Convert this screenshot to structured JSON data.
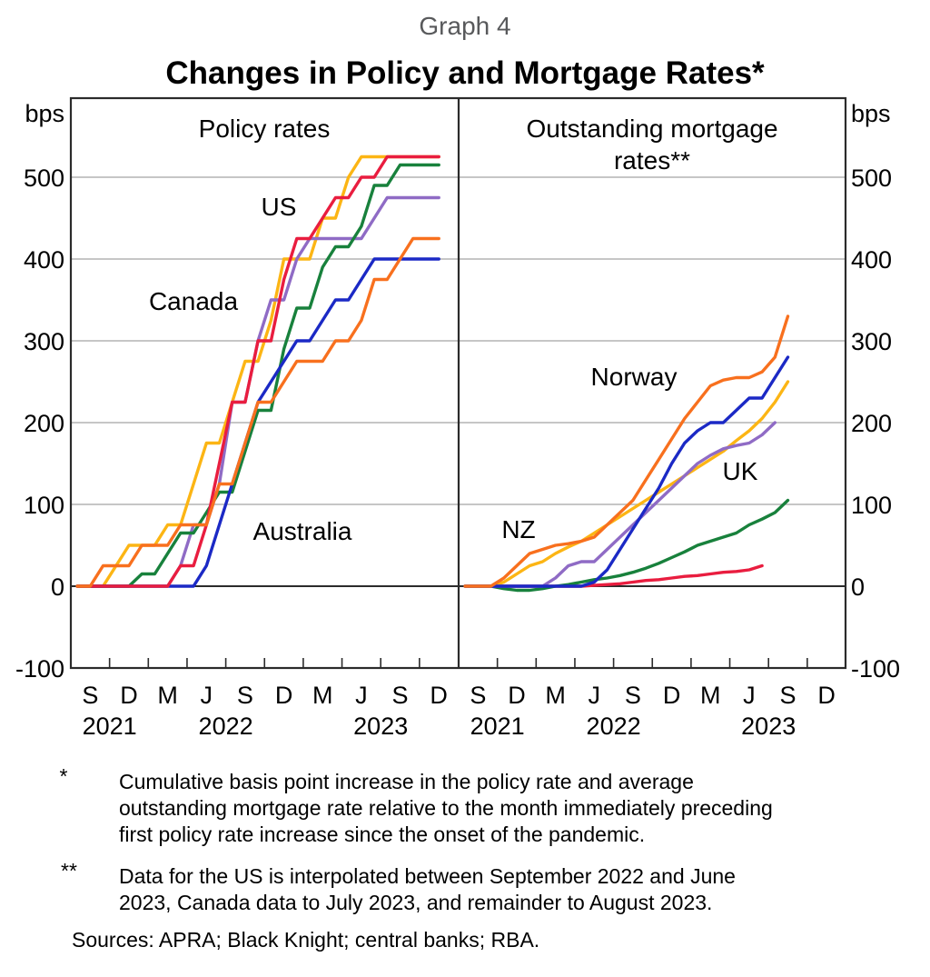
{
  "graph_label": "Graph 4",
  "title": "Changes in Policy and Mortgage Rates*",
  "y_axis": {
    "unit": "bps",
    "min": -100,
    "max": 600,
    "tick_labels": [
      500,
      400,
      300,
      200,
      100,
      0,
      -100
    ],
    "gridlines": [
      100,
      200,
      300,
      400,
      500
    ],
    "grid_on": true
  },
  "x_axis": {
    "quarter_labels": [
      "S",
      "D",
      "M",
      "J",
      "S",
      "D",
      "M",
      "J",
      "S",
      "D"
    ],
    "years": [
      "2021",
      "2022",
      "2023"
    ],
    "start_month": "Aug 2021",
    "end_month": "Dec 2023"
  },
  "chart_data": {
    "type": "line",
    "months": [
      "Aug 2021",
      "Sep 2021",
      "Oct 2021",
      "Nov 2021",
      "Dec 2021",
      "Jan 2022",
      "Feb 2022",
      "Mar 2022",
      "Apr 2022",
      "May 2022",
      "Jun 2022",
      "Jul 2022",
      "Aug 2022",
      "Sep 2022",
      "Oct 2022",
      "Nov 2022",
      "Dec 2022",
      "Jan 2023",
      "Feb 2023",
      "Mar 2023",
      "Apr 2023",
      "May 2023",
      "Jun 2023",
      "Jul 2023",
      "Aug 2023",
      "Sep 2023",
      "Oct 2023",
      "Nov 2023",
      "Dec 2023"
    ],
    "ylabel": "bps",
    "ylim": [
      -100,
      600
    ],
    "panels": [
      {
        "id": "policy",
        "title_lines": [
          "Policy rates"
        ],
        "series": [
          {
            "name": "NZ",
            "color": "#fcb514",
            "values": [
              0,
              0,
              0,
              25,
              50,
              50,
              50,
              75,
              75,
              125,
              175,
              175,
              225,
              275,
              275,
              325,
              400,
              400,
              400,
              450,
              450,
              500,
              525,
              525,
              525,
              525,
              525,
              525,
              525
            ]
          },
          {
            "name": "Canada",
            "color": "#8f6bc5",
            "values": [
              0,
              0,
              0,
              0,
              0,
              0,
              0,
              0,
              25,
              75,
              75,
              125,
              225,
              225,
              300,
              350,
              350,
              400,
              425,
              425,
              425,
              425,
              425,
              450,
              475,
              475,
              475,
              475,
              475
            ]
          },
          {
            "name": "UK",
            "color": "#18813c",
            "values": [
              0,
              0,
              0,
              0,
              0,
              15,
              15,
              40,
              65,
              65,
              90,
              115,
              115,
              165,
              215,
              215,
              290,
              340,
              340,
              390,
              415,
              415,
              440,
              490,
              490,
              515,
              515,
              515,
              515
            ]
          },
          {
            "name": "Australia",
            "color": "#1b29c5",
            "values": [
              0,
              0,
              0,
              0,
              0,
              0,
              0,
              0,
              0,
              0,
              25,
              75,
              125,
              175,
              225,
              250,
              275,
              300,
              300,
              325,
              350,
              350,
              375,
              400,
              400,
              400,
              400,
              400,
              400
            ]
          },
          {
            "name": "US",
            "color": "#e91d3f",
            "values": [
              0,
              0,
              0,
              0,
              0,
              0,
              0,
              0,
              25,
              25,
              75,
              150,
              225,
              225,
              300,
              300,
              375,
              425,
              425,
              450,
              475,
              475,
              500,
              500,
              525,
              525,
              525,
              525,
              525
            ]
          },
          {
            "name": "Norway",
            "color": "#f8701e",
            "values": [
              0,
              0,
              25,
              25,
              25,
              50,
              50,
              50,
              75,
              75,
              75,
              125,
              125,
              175,
              225,
              225,
              250,
              275,
              275,
              275,
              300,
              300,
              325,
              375,
              375,
              400,
              425,
              425,
              425
            ]
          }
        ]
      },
      {
        "id": "mortgage",
        "title_lines": [
          "Outstanding mortgage",
          "rates**"
        ],
        "series": [
          {
            "name": "US",
            "color": "#e91d3f",
            "values": [
              0,
              0,
              0,
              0,
              0,
              0,
              0,
              0,
              0,
              0,
              1,
              2,
              3,
              5,
              7,
              8,
              10,
              12,
              13,
              15,
              17,
              18,
              20,
              25
            ]
          },
          {
            "name": "UK",
            "color": "#18813c",
            "values": [
              0,
              0,
              0,
              -3,
              -5,
              -5,
              -3,
              0,
              2,
              5,
              8,
              10,
              13,
              17,
              22,
              28,
              35,
              42,
              50,
              55,
              60,
              65,
              75,
              82,
              90,
              105
            ]
          },
          {
            "name": "NZ",
            "color": "#fcb514",
            "values": [
              0,
              0,
              0,
              5,
              15,
              25,
              30,
              40,
              48,
              55,
              65,
              75,
              85,
              95,
              105,
              115,
              125,
              135,
              145,
              155,
              165,
              178,
              190,
              205,
              225,
              250
            ]
          },
          {
            "name": "Canada",
            "color": "#8f6bc5",
            "values": [
              0,
              0,
              0,
              0,
              0,
              0,
              0,
              10,
              25,
              30,
              30,
              45,
              60,
              75,
              90,
              105,
              120,
              135,
              150,
              160,
              168,
              172,
              175,
              185,
              200
            ]
          },
          {
            "name": "Australia",
            "color": "#1b29c5",
            "values": [
              0,
              0,
              0,
              0,
              0,
              0,
              0,
              0,
              0,
              0,
              5,
              20,
              45,
              70,
              95,
              120,
              150,
              175,
              190,
              200,
              200,
              215,
              230,
              230,
              255,
              280
            ]
          },
          {
            "name": "Norway",
            "color": "#f8701e",
            "values": [
              0,
              0,
              0,
              10,
              25,
              40,
              45,
              50,
              52,
              55,
              60,
              75,
              90,
              105,
              130,
              155,
              180,
              205,
              225,
              245,
              252,
              255,
              255,
              262,
              280,
              330
            ]
          }
        ]
      }
    ]
  },
  "footnotes": [
    {
      "marker": "*",
      "lines": [
        "Cumulative basis point increase in the policy rate and average",
        "outstanding mortgage rate relative to the month immediately preceding",
        "first policy rate increase since the onset of the pandemic."
      ]
    },
    {
      "marker": "**",
      "lines": [
        "Data for the US is interpolated between September 2022 and June",
        "2023, Canada data to July 2023, and remainder to August 2023."
      ]
    }
  ],
  "sources": "Sources: APRA; Black Knight; central banks; RBA."
}
